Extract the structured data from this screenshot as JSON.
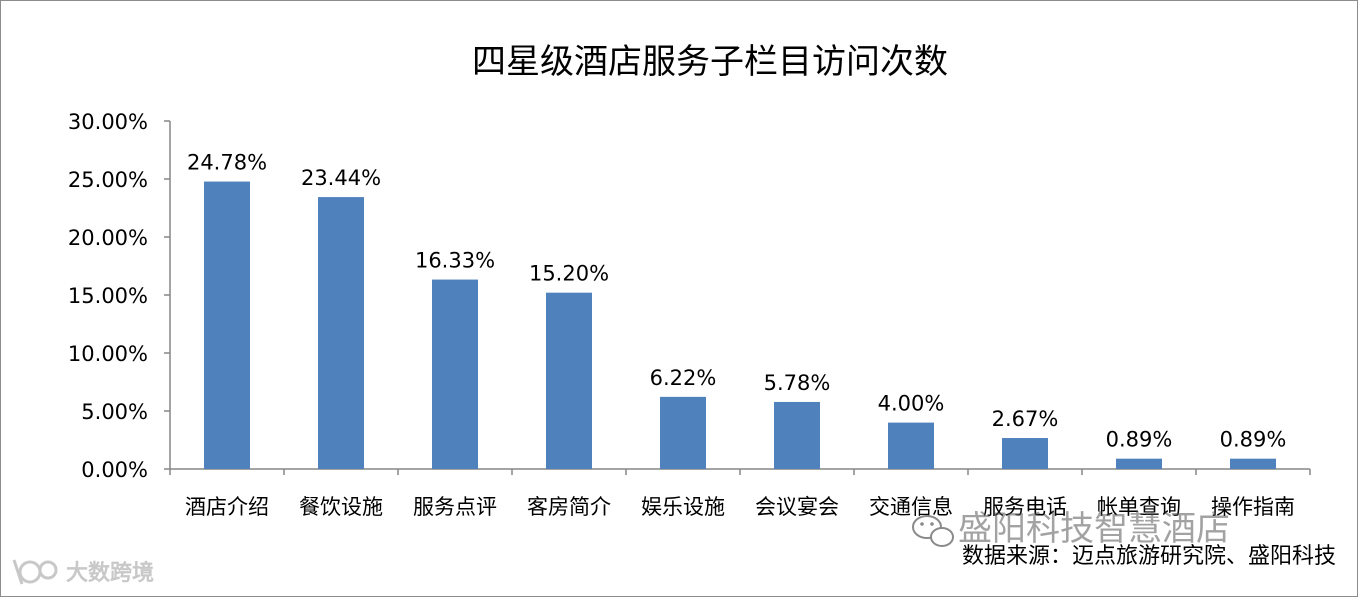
{
  "chart_data": {
    "type": "bar",
    "title": "四星级酒店服务子栏目访问次数",
    "xlabel": "",
    "ylabel": "",
    "categories": [
      "酒店介绍",
      "餐饮设施",
      "服务点评",
      "客房简介",
      "娱乐设施",
      "会议宴会",
      "交通信息",
      "服务电话",
      "帐单查询",
      "操作指南"
    ],
    "values": [
      24.78,
      23.44,
      16.33,
      15.2,
      6.22,
      5.78,
      4.0,
      2.67,
      0.89,
      0.89
    ],
    "data_labels": [
      "24.78%",
      "23.44%",
      "16.33%",
      "15.20%",
      "6.22%",
      "5.78%",
      "4.00%",
      "2.67%",
      "0.89%",
      "0.89%"
    ],
    "y_ticks": [
      0,
      5,
      10,
      15,
      20,
      25,
      30
    ],
    "y_tick_labels": [
      "0.00%",
      "5.00%",
      "10.00%",
      "15.00%",
      "20.00%",
      "25.00%",
      "30.00%"
    ],
    "ylim": [
      0,
      30
    ],
    "grid": false,
    "legend": "none",
    "bar_color": "#4f81bd"
  },
  "source_note": "数据来源：迈点旅游研究院、盛阳科技",
  "watermark_text": "盛阳科技智慧酒店",
  "logo_text": "大数跨境",
  "icons": {
    "wechat": "wechat-icon",
    "logo": "logo-icon"
  }
}
